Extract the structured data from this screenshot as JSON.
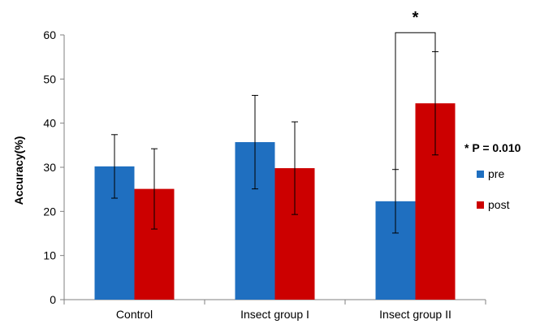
{
  "chart_data": {
    "type": "bar",
    "categories": [
      "Control",
      "Insect group I",
      "Insect group II"
    ],
    "series": [
      {
        "name": "pre",
        "values": [
          30.2,
          35.7,
          22.3
        ],
        "errors": [
          7.2,
          10.6,
          7.2
        ],
        "color": "#1f6fc0"
      },
      {
        "name": "post",
        "values": [
          25.1,
          29.8,
          44.5
        ],
        "errors": [
          9.1,
          10.5,
          11.7
        ],
        "color": "#cc0000"
      }
    ],
    "ylabel": "Accuracy(%)",
    "xlabel": "",
    "ylim": [
      0,
      60
    ],
    "yticks": [
      0,
      10,
      20,
      30,
      40,
      50,
      60
    ],
    "grid": false,
    "legend_position": "right",
    "annotation": {
      "significance_marker": "*",
      "bracket_category": "Insect group II",
      "bracket_top_value": 60.5,
      "text": "* P = 0.010"
    }
  }
}
